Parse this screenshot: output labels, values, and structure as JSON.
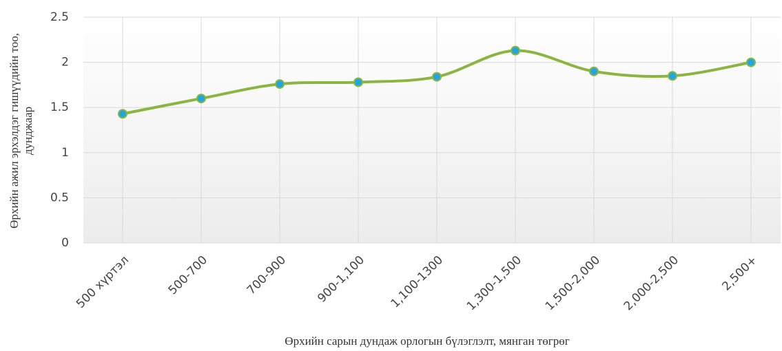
{
  "chart_data": {
    "type": "line",
    "x_label": "Өрхийн сарын дундаж орлогын бүлэглэлт, мянган  төгрөг",
    "y_label": [
      "Өрхийн ажил эрхэлдэг гишүүдийн тоо,",
      "дунджаар"
    ],
    "categories": [
      "500 хүртэл",
      "500-700",
      "700-900",
      "900-1,100",
      "1,100-1300",
      "1,300-1,500",
      "1,500-2,000",
      "2,000-2,500",
      "2,500+"
    ],
    "series": [
      {
        "name": "Өрхийн ажил эрхэлдэг гишүүдийн тоо",
        "color": "#8ab53f",
        "marker_color": "#1ea7e4",
        "values": [
          1.43,
          1.6,
          1.76,
          1.78,
          1.84,
          2.13,
          1.9,
          1.85,
          2.0
        ]
      }
    ],
    "ylim": [
      0,
      2.5
    ],
    "yticks": [
      0,
      0.5,
      1,
      1.5,
      2,
      2.5
    ],
    "grid": true,
    "smooth": true
  }
}
